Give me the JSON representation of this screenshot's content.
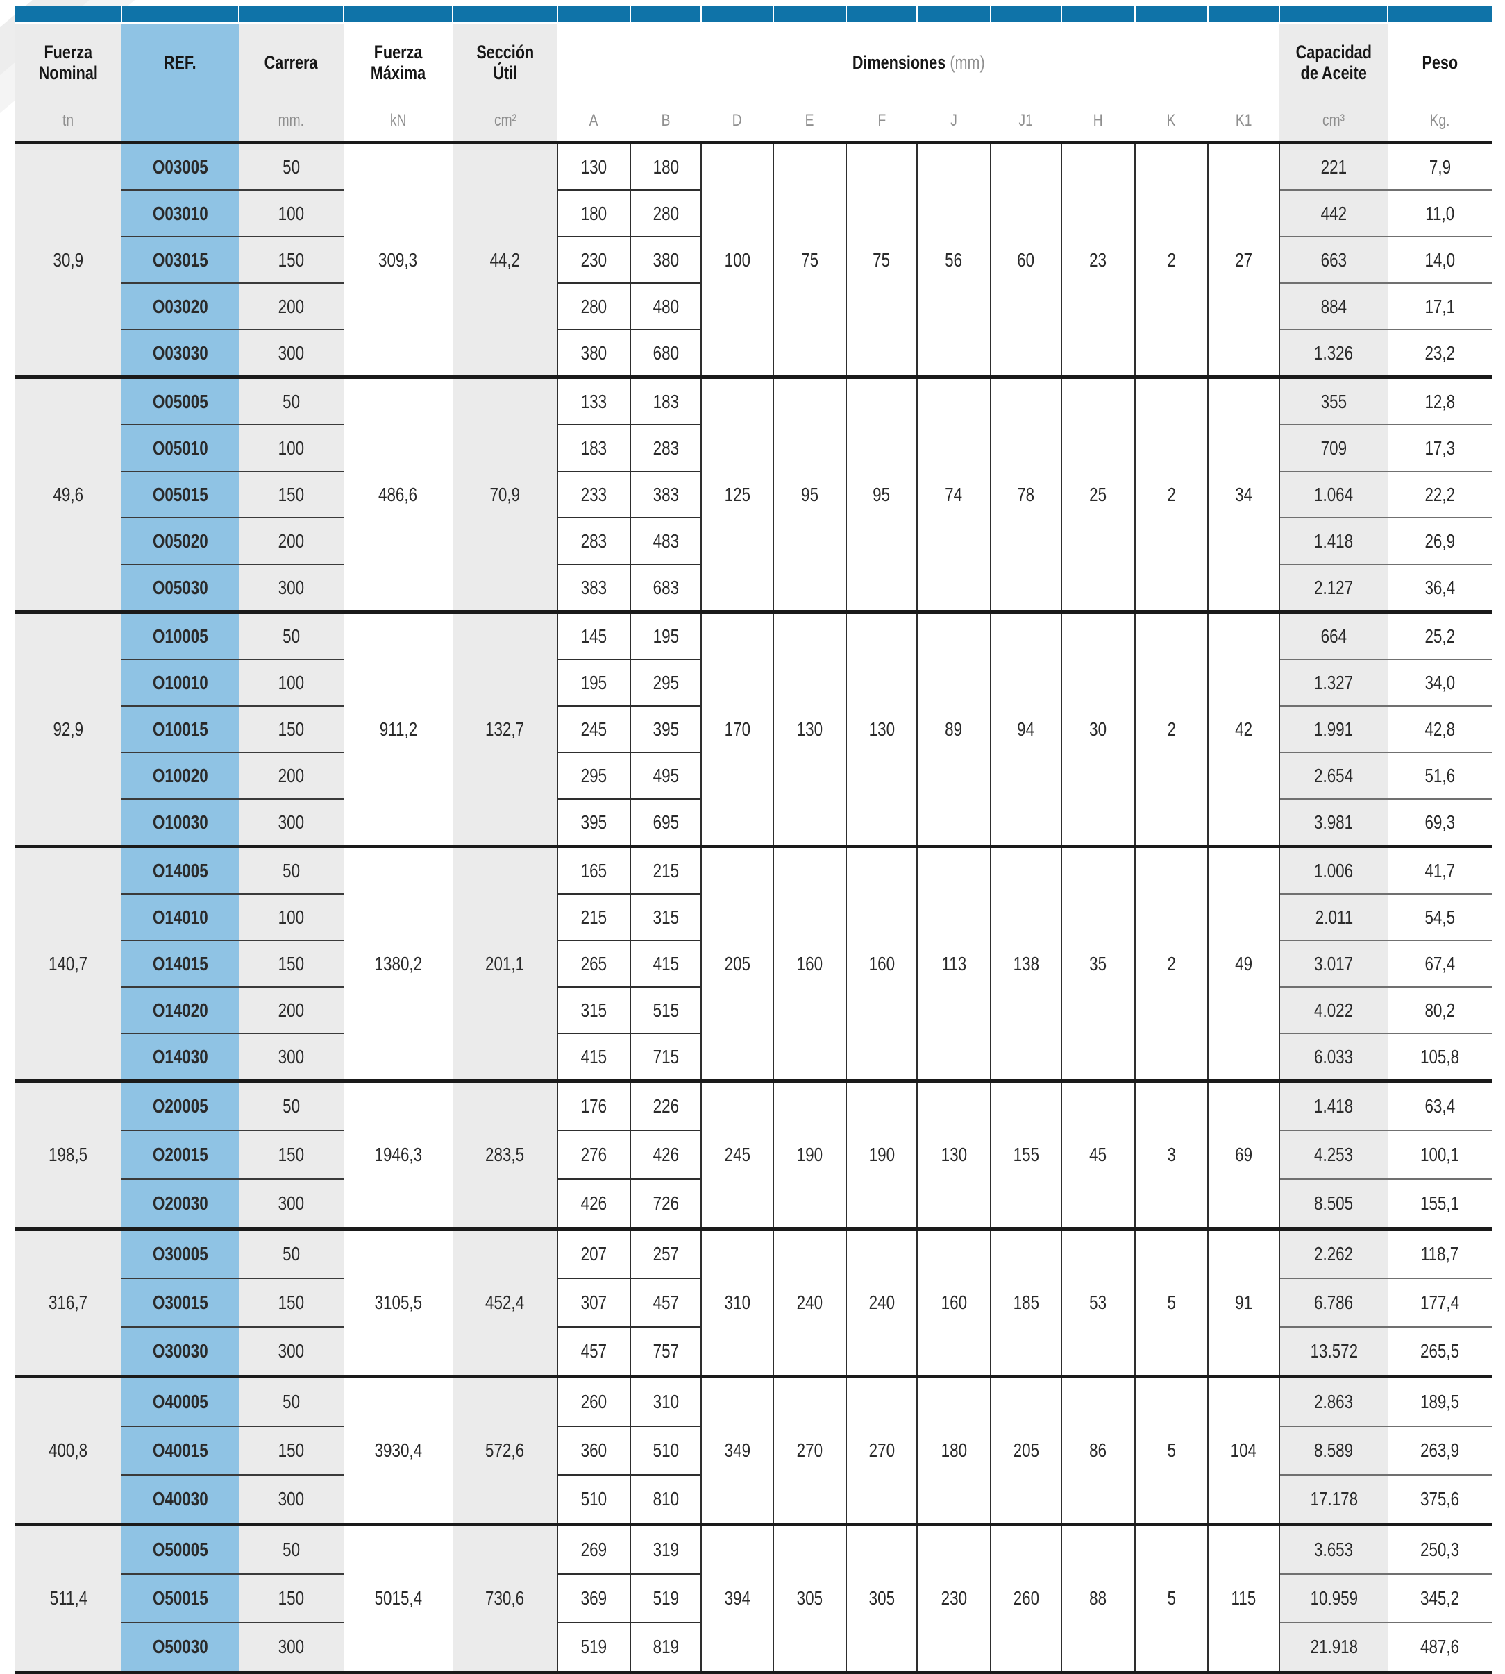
{
  "header": {
    "columns": {
      "fuerza_nominal": {
        "label": "Fuerza\nNominal",
        "unit": "tn"
      },
      "ref": {
        "label": "REF.",
        "unit": ""
      },
      "carrera": {
        "label": "Carrera",
        "unit": "mm."
      },
      "fuerza_maxima": {
        "label": "Fuerza\nMáxima",
        "unit": "kN"
      },
      "seccion_util": {
        "label": "Sección\nÚtil",
        "unit": "cm²"
      },
      "dimensiones": {
        "label": "Dimensiones",
        "note": "(mm)",
        "subcolumns": [
          "A",
          "B",
          "D",
          "E",
          "F",
          "J",
          "J1",
          "H",
          "K",
          "K1"
        ]
      },
      "capacidad_aceite": {
        "label": "Capacidad\nde Aceite",
        "unit": "cm³"
      },
      "peso": {
        "label": "Peso",
        "unit": "Kg."
      }
    }
  },
  "colors": {
    "top_bar_blue": "#0f73a8",
    "ref_column_blue": "#8fc3e4",
    "shaded_column_gray": "#ebebeb",
    "group_divider_black": "#1a1a1a"
  },
  "groups": [
    {
      "fuerza_nominal": "30,9",
      "fuerza_maxima": "309,3",
      "seccion_util": "44,2",
      "dims": {
        "D": "100",
        "E": "75",
        "F": "75",
        "J": "56",
        "J1": "60",
        "H": "23",
        "K": "2",
        "K1": "27"
      },
      "rows": [
        {
          "ref": "O03005",
          "carrera": "50",
          "a": "130",
          "b": "180",
          "capacidad": "221",
          "peso": "7,9"
        },
        {
          "ref": "O03010",
          "carrera": "100",
          "a": "180",
          "b": "280",
          "capacidad": "442",
          "peso": "11,0"
        },
        {
          "ref": "O03015",
          "carrera": "150",
          "a": "230",
          "b": "380",
          "capacidad": "663",
          "peso": "14,0"
        },
        {
          "ref": "O03020",
          "carrera": "200",
          "a": "280",
          "b": "480",
          "capacidad": "884",
          "peso": "17,1"
        },
        {
          "ref": "O03030",
          "carrera": "300",
          "a": "380",
          "b": "680",
          "capacidad": "1.326",
          "peso": "23,2"
        }
      ]
    },
    {
      "fuerza_nominal": "49,6",
      "fuerza_maxima": "486,6",
      "seccion_util": "70,9",
      "dims": {
        "D": "125",
        "E": "95",
        "F": "95",
        "J": "74",
        "J1": "78",
        "H": "25",
        "K": "2",
        "K1": "34"
      },
      "rows": [
        {
          "ref": "O05005",
          "carrera": "50",
          "a": "133",
          "b": "183",
          "capacidad": "355",
          "peso": "12,8"
        },
        {
          "ref": "O05010",
          "carrera": "100",
          "a": "183",
          "b": "283",
          "capacidad": "709",
          "peso": "17,3"
        },
        {
          "ref": "O05015",
          "carrera": "150",
          "a": "233",
          "b": "383",
          "capacidad": "1.064",
          "peso": "22,2"
        },
        {
          "ref": "O05020",
          "carrera": "200",
          "a": "283",
          "b": "483",
          "capacidad": "1.418",
          "peso": "26,9"
        },
        {
          "ref": "O05030",
          "carrera": "300",
          "a": "383",
          "b": "683",
          "capacidad": "2.127",
          "peso": "36,4"
        }
      ]
    },
    {
      "fuerza_nominal": "92,9",
      "fuerza_maxima": "911,2",
      "seccion_util": "132,7",
      "dims": {
        "D": "170",
        "E": "130",
        "F": "130",
        "J": "89",
        "J1": "94",
        "H": "30",
        "K": "2",
        "K1": "42"
      },
      "rows": [
        {
          "ref": "O10005",
          "carrera": "50",
          "a": "145",
          "b": "195",
          "capacidad": "664",
          "peso": "25,2"
        },
        {
          "ref": "O10010",
          "carrera": "100",
          "a": "195",
          "b": "295",
          "capacidad": "1.327",
          "peso": "34,0"
        },
        {
          "ref": "O10015",
          "carrera": "150",
          "a": "245",
          "b": "395",
          "capacidad": "1.991",
          "peso": "42,8"
        },
        {
          "ref": "O10020",
          "carrera": "200",
          "a": "295",
          "b": "495",
          "capacidad": "2.654",
          "peso": "51,6"
        },
        {
          "ref": "O10030",
          "carrera": "300",
          "a": "395",
          "b": "695",
          "capacidad": "3.981",
          "peso": "69,3"
        }
      ]
    },
    {
      "fuerza_nominal": "140,7",
      "fuerza_maxima": "1380,2",
      "seccion_util": "201,1",
      "dims": {
        "D": "205",
        "E": "160",
        "F": "160",
        "J": "113",
        "J1": "138",
        "H": "35",
        "K": "2",
        "K1": "49"
      },
      "rows": [
        {
          "ref": "O14005",
          "carrera": "50",
          "a": "165",
          "b": "215",
          "capacidad": "1.006",
          "peso": "41,7"
        },
        {
          "ref": "O14010",
          "carrera": "100",
          "a": "215",
          "b": "315",
          "capacidad": "2.011",
          "peso": "54,5"
        },
        {
          "ref": "O14015",
          "carrera": "150",
          "a": "265",
          "b": "415",
          "capacidad": "3.017",
          "peso": "67,4"
        },
        {
          "ref": "O14020",
          "carrera": "200",
          "a": "315",
          "b": "515",
          "capacidad": "4.022",
          "peso": "80,2"
        },
        {
          "ref": "O14030",
          "carrera": "300",
          "a": "415",
          "b": "715",
          "capacidad": "6.033",
          "peso": "105,8"
        }
      ]
    },
    {
      "fuerza_nominal": "198,5",
      "fuerza_maxima": "1946,3",
      "seccion_util": "283,5",
      "dims": {
        "D": "245",
        "E": "190",
        "F": "190",
        "J": "130",
        "J1": "155",
        "H": "45",
        "K": "3",
        "K1": "69"
      },
      "rows": [
        {
          "ref": "O20005",
          "carrera": "50",
          "a": "176",
          "b": "226",
          "capacidad": "1.418",
          "peso": "63,4"
        },
        {
          "ref": "O20015",
          "carrera": "150",
          "a": "276",
          "b": "426",
          "capacidad": "4.253",
          "peso": "100,1"
        },
        {
          "ref": "O20030",
          "carrera": "300",
          "a": "426",
          "b": "726",
          "capacidad": "8.505",
          "peso": "155,1"
        }
      ]
    },
    {
      "fuerza_nominal": "316,7",
      "fuerza_maxima": "3105,5",
      "seccion_util": "452,4",
      "dims": {
        "D": "310",
        "E": "240",
        "F": "240",
        "J": "160",
        "J1": "185",
        "H": "53",
        "K": "5",
        "K1": "91"
      },
      "rows": [
        {
          "ref": "O30005",
          "carrera": "50",
          "a": "207",
          "b": "257",
          "capacidad": "2.262",
          "peso": "118,7"
        },
        {
          "ref": "O30015",
          "carrera": "150",
          "a": "307",
          "b": "457",
          "capacidad": "6.786",
          "peso": "177,4"
        },
        {
          "ref": "O30030",
          "carrera": "300",
          "a": "457",
          "b": "757",
          "capacidad": "13.572",
          "peso": "265,5"
        }
      ]
    },
    {
      "fuerza_nominal": "400,8",
      "fuerza_maxima": "3930,4",
      "seccion_util": "572,6",
      "dims": {
        "D": "349",
        "E": "270",
        "F": "270",
        "J": "180",
        "J1": "205",
        "H": "86",
        "K": "5",
        "K1": "104"
      },
      "rows": [
        {
          "ref": "O40005",
          "carrera": "50",
          "a": "260",
          "b": "310",
          "capacidad": "2.863",
          "peso": "189,5"
        },
        {
          "ref": "O40015",
          "carrera": "150",
          "a": "360",
          "b": "510",
          "capacidad": "8.589",
          "peso": "263,9"
        },
        {
          "ref": "O40030",
          "carrera": "300",
          "a": "510",
          "b": "810",
          "capacidad": "17.178",
          "peso": "375,6"
        }
      ]
    },
    {
      "fuerza_nominal": "511,4",
      "fuerza_maxima": "5015,4",
      "seccion_util": "730,6",
      "dims": {
        "D": "394",
        "E": "305",
        "F": "305",
        "J": "230",
        "J1": "260",
        "H": "88",
        "K": "5",
        "K1": "115"
      },
      "rows": [
        {
          "ref": "O50005",
          "carrera": "50",
          "a": "269",
          "b": "319",
          "capacidad": "3.653",
          "peso": "250,3"
        },
        {
          "ref": "O50015",
          "carrera": "150",
          "a": "369",
          "b": "519",
          "capacidad": "10.959",
          "peso": "345,2"
        },
        {
          "ref": "O50030",
          "carrera": "300",
          "a": "519",
          "b": "819",
          "capacidad": "21.918",
          "peso": "487,6"
        }
      ]
    }
  ]
}
